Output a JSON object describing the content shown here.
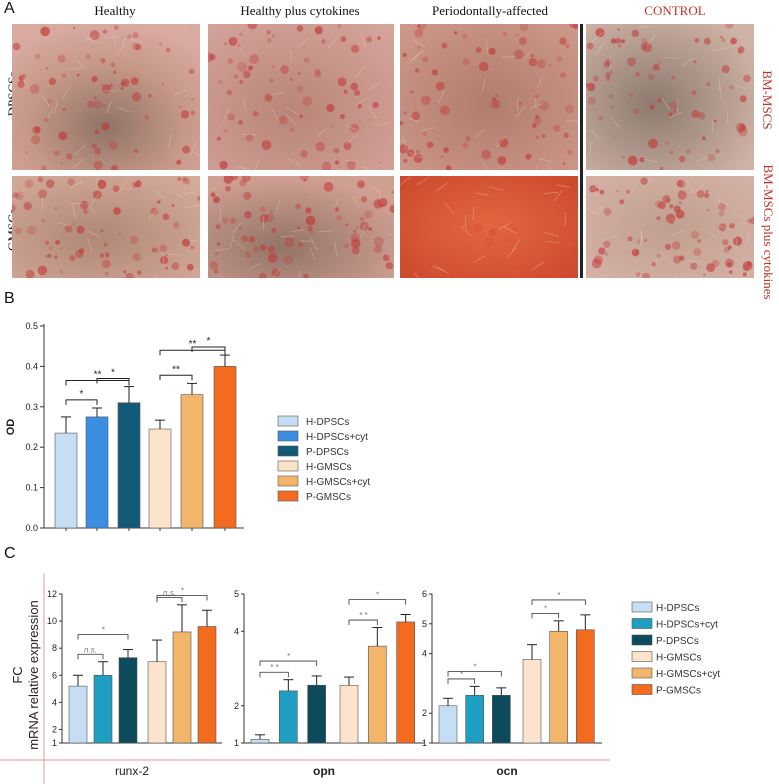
{
  "panel_a": {
    "letter": "A",
    "columns": [
      "Healthy",
      "Healthy plus cytokines",
      "Periodontally-affected",
      "CONTROL"
    ],
    "rows": [
      "DPSCSs",
      "GMSCs"
    ],
    "side_labels": [
      "BM-MSCS",
      "BM-MSCs plus cytokines"
    ],
    "tile_colors": {
      "base": "#c99a8c",
      "spots": "#c23a3a",
      "dark": "#8a6a5c",
      "bright": "#d8553a"
    }
  },
  "panel_b": {
    "letter": "B",
    "legend": [
      "H-DPSCs",
      "H-DPSCs+cyt",
      "P-DPSCs",
      "H-GMSCs",
      "H-GMSCs+cyt",
      "P-GMSCs"
    ],
    "colors": [
      "#c6def3",
      "#3b8fe0",
      "#125a78",
      "#fbe3cc",
      "#f3b56a",
      "#f26b1f"
    ]
  },
  "panel_c": {
    "letter": "C",
    "ylabel_line1": "FC",
    "ylabel_line2": "mRNA relative expression",
    "legend": [
      "H-DPSCs",
      "H-DPSCs+cyt",
      "P-DPSCs",
      "H-GMSCs",
      "H-GMSCs+cyt",
      "P-GMSCs"
    ],
    "colors": [
      "#c6def3",
      "#1e9ec0",
      "#0d4b5c",
      "#fbe3cc",
      "#f3b56a",
      "#f26b1f"
    ]
  },
  "chart_data": [
    {
      "type": "bar",
      "panel": "B",
      "categories": [
        "H-DPSCs",
        "H-DPSCs+cyt",
        "P-DPSCs",
        "H-GMSCs",
        "H-GMSCs+cyt",
        "P-GMSCs"
      ],
      "values": [
        0.235,
        0.275,
        0.31,
        0.245,
        0.33,
        0.4
      ],
      "errors": [
        0.04,
        0.022,
        0.04,
        0.022,
        0.028,
        0.028
      ],
      "ylabel": "OD",
      "ylim": [
        0,
        0.5
      ],
      "yticks": [
        "0.0",
        "0.1",
        "0.2",
        "0.3",
        "0.4",
        "0.5"
      ],
      "grid": false,
      "significance": [
        {
          "from": 0,
          "to": 1,
          "label": "*"
        },
        {
          "from": 1,
          "to": 2,
          "label": "*"
        },
        {
          "from": 0,
          "to": 2,
          "label": "**"
        },
        {
          "from": 3,
          "to": 4,
          "label": "**"
        },
        {
          "from": 4,
          "to": 5,
          "label": "*"
        },
        {
          "from": 3,
          "to": 5,
          "label": "**"
        }
      ]
    },
    {
      "type": "bar",
      "panel": "C",
      "xlabel": "runx-2",
      "categories": [
        "H-DPSCs",
        "H-DPSCs+cyt",
        "P-DPSCs",
        "H-GMSCs",
        "H-GMSCs+cyt",
        "P-GMSCs"
      ],
      "values": [
        5.2,
        6.0,
        7.3,
        7.0,
        9.2,
        9.6
      ],
      "errors": [
        0.8,
        1.0,
        0.6,
        1.6,
        2.0,
        1.2
      ],
      "ylim": [
        1,
        12
      ],
      "yticks": [
        "1",
        "2",
        "4",
        "6",
        "8",
        "10",
        "12"
      ],
      "significance": [
        {
          "from": 0,
          "to": 1,
          "label": "n.s."
        },
        {
          "from": 0,
          "to": 2,
          "label": "*"
        },
        {
          "from": 3,
          "to": 4,
          "label": "n.s."
        },
        {
          "from": 3,
          "to": 5,
          "label": "*"
        }
      ]
    },
    {
      "type": "bar",
      "panel": "C",
      "xlabel": "opn",
      "categories": [
        "H-DPSCs",
        "H-DPSCs+cyt",
        "P-DPSCs",
        "H-GMSCs",
        "H-GMSCs+cyt",
        "P-GMSCs"
      ],
      "values": [
        1.1,
        2.4,
        2.55,
        2.55,
        3.6,
        4.25
      ],
      "errors": [
        0.12,
        0.3,
        0.25,
        0.22,
        0.5,
        0.2
      ],
      "ylim": [
        1,
        5
      ],
      "yticks": [
        "1",
        "2",
        "4",
        "5"
      ],
      "significance": [
        {
          "from": 0,
          "to": 1,
          "label": "* *"
        },
        {
          "from": 0,
          "to": 2,
          "label": "*"
        },
        {
          "from": 3,
          "to": 4,
          "label": "* *"
        },
        {
          "from": 3,
          "to": 5,
          "label": "*"
        }
      ]
    },
    {
      "type": "bar",
      "panel": "C",
      "xlabel": "ocn",
      "categories": [
        "H-DPSCs",
        "H-DPSCs+cyt",
        "P-DPSCs",
        "H-GMSCs",
        "H-GMSCs+cyt",
        "P-GMSCs"
      ],
      "values": [
        2.25,
        2.6,
        2.6,
        3.8,
        4.75,
        4.8
      ],
      "errors": [
        0.25,
        0.3,
        0.25,
        0.5,
        0.35,
        0.5
      ],
      "ylim": [
        1,
        6
      ],
      "yticks": [
        "1",
        "2",
        "4",
        "5",
        "6"
      ],
      "significance": [
        {
          "from": 0,
          "to": 1,
          "label": "*"
        },
        {
          "from": 0,
          "to": 2,
          "label": "*"
        },
        {
          "from": 3,
          "to": 4,
          "label": "*"
        },
        {
          "from": 3,
          "to": 5,
          "label": "*"
        }
      ]
    }
  ]
}
